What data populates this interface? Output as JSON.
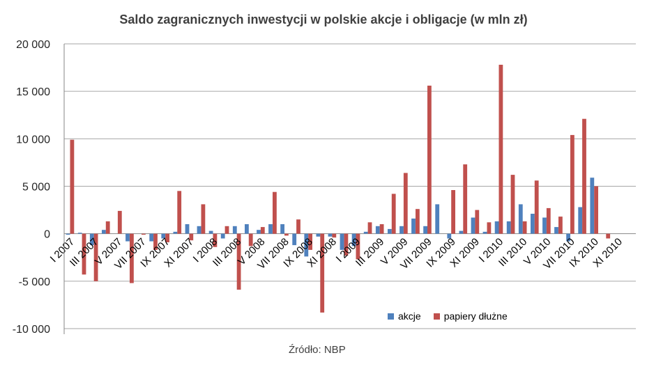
{
  "chart_data": {
    "type": "bar",
    "title": "Saldo zagranicznych inwestycji w polskie akcje i obligacje (w mln zł)",
    "xlabel": "",
    "ylabel": "",
    "ylim": [
      -10000,
      20000
    ],
    "yticks": [
      20000,
      15000,
      10000,
      5000,
      0,
      -5000,
      -10000
    ],
    "ytick_labels": [
      "20 000",
      "15 000",
      "10 000",
      "5 000",
      "0",
      "-5 000",
      "-10 000"
    ],
    "grid": true,
    "legend_position": "bottom-right inside",
    "categories": [
      "I 2007",
      "II 2007",
      "III 2007",
      "IV 2007",
      "V 2007",
      "VI 2007",
      "VII 2007",
      "VIII 2007",
      "IX 2007",
      "X 2007",
      "XI 2007",
      "XII 2007",
      "I 2008",
      "II 2008",
      "III 2008",
      "IV 2008",
      "V 2008",
      "VI 2008",
      "VII 2008",
      "VIII 2008",
      "IX 2008",
      "X 2008",
      "XI 2008",
      "XII 2008",
      "I 2009",
      "II 2009",
      "III 2009",
      "IV 2009",
      "V 2009",
      "VI 2009",
      "VII 2009",
      "VIII 2009",
      "IX 2009",
      "X 2009",
      "XI 2009",
      "XII 2009",
      "I 2010",
      "II 2010",
      "III 2010",
      "IV 2010",
      "V 2010",
      "VI 2010",
      "VII 2010",
      "VIII 2010",
      "IX 2010",
      "X 2010",
      "XI 2010",
      "XII 2010"
    ],
    "visible_tick_labels": [
      "I 2007",
      "III 2007",
      "V 2007",
      "VII 2007",
      "IX 2007",
      "XI 2007",
      "I 2008",
      "III 2008",
      "V 2008",
      "VII 2008",
      "IX 2008",
      "XI 2008",
      "I 2009",
      "III 2009",
      "V 2009",
      "VII 2009",
      "IX 2009",
      "XI 2009",
      "I 2010",
      "III 2010",
      "V 2010",
      "VII 2010",
      "IX 2010",
      "XI 2010"
    ],
    "series": [
      {
        "name": "akcje",
        "color": "#4f81bd",
        "values": [
          -100,
          100,
          -1200,
          400,
          0,
          -800,
          0,
          -800,
          -500,
          200,
          1000,
          800,
          300,
          -500,
          800,
          1000,
          400,
          1000,
          1000,
          -1200,
          -2400,
          -300,
          -300,
          -1700,
          -1300,
          200,
          800,
          500,
          800,
          1600,
          800,
          3100,
          -500,
          300,
          1700,
          200,
          1300,
          1300,
          3100,
          2100,
          1700,
          700,
          -800,
          2800,
          5900,
          0,
          0,
          0
        ]
      },
      {
        "name": "papiery dłużne",
        "color": "#c0504d",
        "values": [
          9900,
          -4300,
          -5000,
          1300,
          2400,
          -5200,
          -100,
          -1700,
          -900,
          4500,
          -700,
          3100,
          -1400,
          800,
          -5900,
          -1300,
          700,
          4400,
          -200,
          1500,
          -1700,
          -8300,
          -400,
          -2300,
          -2700,
          1200,
          1000,
          4200,
          6400,
          2600,
          15600,
          0,
          4600,
          7300,
          2500,
          1200,
          17800,
          6200,
          1300,
          5600,
          2700,
          1800,
          10400,
          12100,
          5000,
          -500,
          0,
          0
        ]
      }
    ]
  },
  "title": "Saldo zagranicznych inwestycji w polskie akcje i obligacje (w mln zł)",
  "legend": {
    "items": [
      {
        "label": "akcje",
        "color": "#4f81bd"
      },
      {
        "label": "papiery dłużne",
        "color": "#c0504d"
      }
    ]
  },
  "source": "Źródło: NBP"
}
